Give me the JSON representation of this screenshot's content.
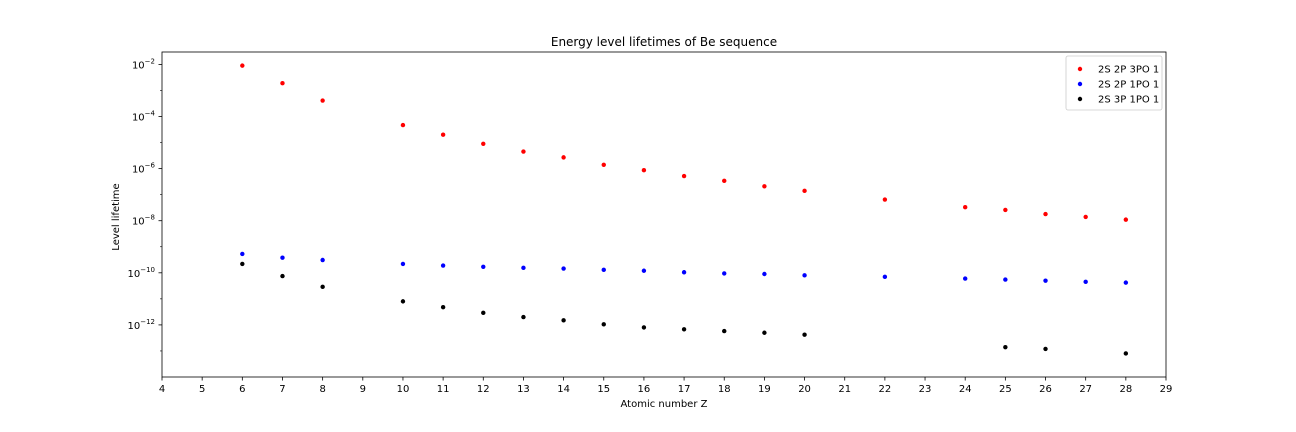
{
  "chart_data": {
    "type": "scatter",
    "title": "Energy level lifetimes of Be sequence",
    "xlabel": "Atomic number Z",
    "ylabel": "Level lifetime",
    "xlim": [
      4,
      29
    ],
    "ylim": [
      1e-14,
      0.03
    ],
    "y_scale": "log",
    "x_ticks": [
      4,
      5,
      6,
      7,
      8,
      9,
      10,
      11,
      12,
      13,
      14,
      15,
      16,
      17,
      18,
      19,
      20,
      21,
      22,
      23,
      24,
      25,
      26,
      27,
      28,
      29
    ],
    "y_ticks": [
      {
        "value": 0.01,
        "base": "10",
        "exp": "−2"
      },
      {
        "value": 0.0001,
        "base": "10",
        "exp": "−4"
      },
      {
        "value": 1e-06,
        "base": "10",
        "exp": "−6"
      },
      {
        "value": 1e-08,
        "base": "10",
        "exp": "−8"
      },
      {
        "value": 1e-10,
        "base": "10",
        "exp": "−10"
      },
      {
        "value": 1e-12,
        "base": "10",
        "exp": "−12"
      }
    ],
    "grid": false,
    "legend_position": "top-right",
    "series": [
      {
        "name": "2S 2P 3PO 1",
        "color": "#ff0000",
        "points": [
          [
            6,
            0.009
          ],
          [
            7,
            0.0019
          ],
          [
            8,
            0.00041
          ],
          [
            10,
            4.7e-05
          ],
          [
            11,
            2e-05
          ],
          [
            12,
            9e-06
          ],
          [
            13,
            4.5e-06
          ],
          [
            14,
            2.7e-06
          ],
          [
            15,
            1.4e-06
          ],
          [
            16,
            8.7e-07
          ],
          [
            17,
            5.2e-07
          ],
          [
            18,
            3.4e-07
          ],
          [
            19,
            2.1e-07
          ],
          [
            20,
            1.4e-07
          ],
          [
            22,
            6.5e-08
          ],
          [
            24,
            3.3e-08
          ],
          [
            25,
            2.6e-08
          ],
          [
            26,
            1.8e-08
          ],
          [
            27,
            1.4e-08
          ],
          [
            28,
            1.1e-08
          ]
        ]
      },
      {
        "name": "2S 2P 1PO 1",
        "color": "#0000ff",
        "points": [
          [
            6,
            5.3e-10
          ],
          [
            7,
            3.8e-10
          ],
          [
            8,
            3.1e-10
          ],
          [
            10,
            2.2e-10
          ],
          [
            11,
            1.9e-10
          ],
          [
            12,
            1.7e-10
          ],
          [
            13,
            1.55e-10
          ],
          [
            14,
            1.45e-10
          ],
          [
            15,
            1.3e-10
          ],
          [
            16,
            1.2e-10
          ],
          [
            17,
            1.05e-10
          ],
          [
            18,
            9.5e-11
          ],
          [
            19,
            9e-11
          ],
          [
            20,
            8e-11
          ],
          [
            22,
            7e-11
          ],
          [
            24,
            6e-11
          ],
          [
            25,
            5.5e-11
          ],
          [
            26,
            5e-11
          ],
          [
            27,
            4.5e-11
          ],
          [
            28,
            4.2e-11
          ]
        ]
      },
      {
        "name": "2S 3P 1PO 1",
        "color": "#000000",
        "points": [
          [
            6,
            2.2e-10
          ],
          [
            7,
            7.5e-11
          ],
          [
            8,
            2.9e-11
          ],
          [
            10,
            8e-12
          ],
          [
            11,
            4.8e-12
          ],
          [
            12,
            2.9e-12
          ],
          [
            13,
            2e-12
          ],
          [
            14,
            1.5e-12
          ],
          [
            15,
            1.05e-12
          ],
          [
            16,
            8e-13
          ],
          [
            17,
            6.8e-13
          ],
          [
            18,
            5.8e-13
          ],
          [
            19,
            5e-13
          ],
          [
            20,
            4.2e-13
          ],
          [
            25,
            1.4e-13
          ],
          [
            26,
            1.2e-13
          ],
          [
            28,
            8e-14
          ]
        ]
      }
    ]
  }
}
